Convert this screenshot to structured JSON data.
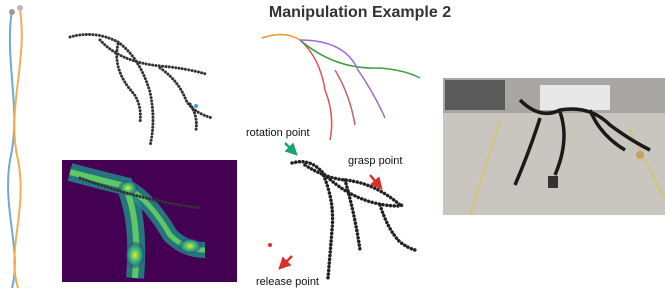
{
  "title": "Manipulation Example 2",
  "annotations": [
    {
      "label": "rotation point"
    },
    {
      "label": "grasp point"
    },
    {
      "label": "release point"
    }
  ]
}
